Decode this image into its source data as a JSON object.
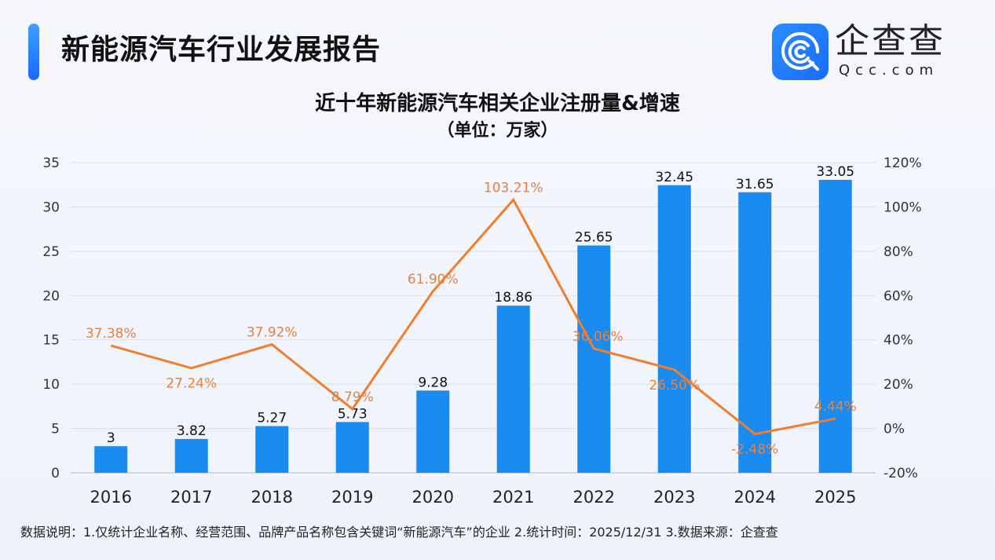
{
  "header": {
    "title": "新能源汽车行业发展报告",
    "brand": "企查查",
    "domain": "Qcc.com"
  },
  "footer": {
    "note": "数据说明：1.仅统计企业名称、经营范围、品牌产品名称包含关键词“新能源汽车”的企业  2.统计时间：2025/12/31   3.数据来源：企查查"
  },
  "chart_data": {
    "type": "bar+line",
    "title": "近十年新能源汽车相关企业注册量&增速",
    "subtitle": "（单位：万家）",
    "categories": [
      "2016",
      "2017",
      "2018",
      "2019",
      "2020",
      "2021",
      "2022",
      "2023",
      "2024",
      "2025"
    ],
    "series": [
      {
        "type": "bar",
        "axis": "left",
        "values": [
          3,
          3.82,
          5.27,
          5.73,
          9.28,
          18.86,
          25.65,
          32.45,
          31.65,
          33.05
        ],
        "labels": [
          "3",
          "3.82",
          "5.27",
          "5.73",
          "9.28",
          "18.86",
          "25.65",
          "32.45",
          "31.65",
          "33.05"
        ]
      },
      {
        "type": "line",
        "axis": "right",
        "values": [
          37.38,
          27.24,
          37.92,
          8.79,
          61.9,
          103.21,
          36.06,
          26.5,
          -2.48,
          4.44
        ],
        "labels": [
          "37.38%",
          "27.24%",
          "37.92%",
          "8.79%",
          "61.90%",
          "103.21%",
          "36.06%",
          "26.50%",
          "-2.48%",
          "4.44%"
        ]
      }
    ],
    "y_left": {
      "ylim": [
        0,
        35
      ],
      "ticks": [
        "0",
        "5",
        "10",
        "15",
        "20",
        "25",
        "30",
        "35"
      ]
    },
    "y_right": {
      "ylim": [
        -20,
        120
      ],
      "ticks": [
        "-20%",
        "0%",
        "20%",
        "40%",
        "60%",
        "80%",
        "100%",
        "120%"
      ]
    },
    "grid": true,
    "colors": {
      "bar": "#1a8bf0",
      "line": "#f07e2c",
      "line_label": "#e8803e"
    }
  }
}
